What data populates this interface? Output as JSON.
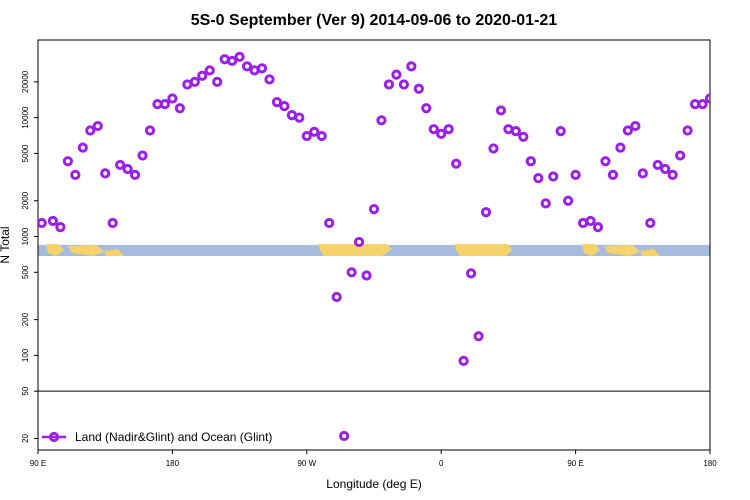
{
  "chart_data": {
    "type": "scatter",
    "title": "5S-0 September (Ver 9)   2014-09-06 to 2020-01-21",
    "xlabel": "Longitude (deg E)",
    "ylabel": "N Total",
    "y_scale": "log",
    "ylim": [
      16,
      45000
    ],
    "xlim": [
      0,
      450
    ],
    "x_ticks": [
      {
        "value": 0,
        "label": "90 E"
      },
      {
        "value": 90,
        "label": "180"
      },
      {
        "value": 180,
        "label": "90 W"
      },
      {
        "value": 270,
        "label": "0"
      },
      {
        "value": 360,
        "label": "90 E"
      },
      {
        "value": 450,
        "label": "180"
      }
    ],
    "y_ticks": [
      {
        "value": 20,
        "label": "20"
      },
      {
        "value": 50,
        "label": "50"
      },
      {
        "value": 100,
        "label": "100"
      },
      {
        "value": 200,
        "label": "200"
      },
      {
        "value": 500,
        "label": "500"
      },
      {
        "value": 1000,
        "label": "1000"
      },
      {
        "value": 2000,
        "label": "2000"
      },
      {
        "value": 5000,
        "label": "5000"
      },
      {
        "value": 10000,
        "label": "10000"
      },
      {
        "value": 20000,
        "label": "20000"
      }
    ],
    "reference_line_y": 50,
    "map_band_y_range": [
      650,
      850
    ],
    "colors": {
      "marker": "#9b1fe8",
      "ocean": "#a7bcdc",
      "land": "#f5d36a",
      "frame": "#000000"
    },
    "legend": {
      "position": "bottom-left",
      "label": "Land (Nadir&Glint) and Ocean (Glint)"
    },
    "series": [
      {
        "name": "Land (Nadir&Glint) and Ocean (Glint)",
        "x": [
          2.5,
          10,
          15,
          20,
          25,
          30,
          35,
          40,
          45,
          50,
          55,
          60,
          65,
          70,
          75,
          80,
          85,
          90,
          95,
          100,
          105,
          110,
          115,
          120,
          125,
          130,
          135,
          140,
          145,
          150,
          155,
          160,
          165,
          170,
          175,
          180,
          185,
          190,
          195,
          200,
          205,
          210,
          215,
          220,
          225,
          230,
          235,
          240,
          245,
          250,
          255,
          260,
          265,
          270,
          275,
          280,
          285,
          290,
          295,
          300,
          305,
          310,
          315,
          320,
          325,
          330,
          335,
          340,
          345,
          350,
          355,
          360,
          365,
          370,
          375,
          380,
          385,
          390,
          395,
          400,
          405,
          410,
          415,
          420,
          425,
          430,
          435,
          440,
          445,
          450
        ],
        "y": [
          1300,
          1350,
          1200,
          4300,
          3300,
          5600,
          7800,
          8500,
          3400,
          1300,
          4000,
          3700,
          3300,
          4800,
          7800,
          13000,
          13000,
          14500,
          12000,
          19000,
          20000,
          22500,
          25000,
          20000,
          31000,
          30000,
          32500,
          27000,
          25000,
          26000,
          21000,
          13500,
          12500,
          10500,
          10000,
          7000,
          7600,
          7000,
          1300,
          310,
          21,
          500,
          900,
          470,
          1700,
          9500,
          19000,
          23000,
          19000,
          27000,
          17500,
          12000,
          8000,
          7300,
          8000,
          4100,
          90,
          490,
          145,
          1600,
          5500,
          11500,
          8000,
          7700,
          6900,
          4300,
          3100,
          1900,
          3200,
          7700,
          2000,
          3300,
          1300,
          1350,
          1200,
          4300,
          3300,
          5600,
          7800,
          8500,
          3400,
          1300,
          4000,
          3700,
          3300,
          4800,
          7800,
          13000,
          13000,
          14500
        ]
      }
    ]
  }
}
